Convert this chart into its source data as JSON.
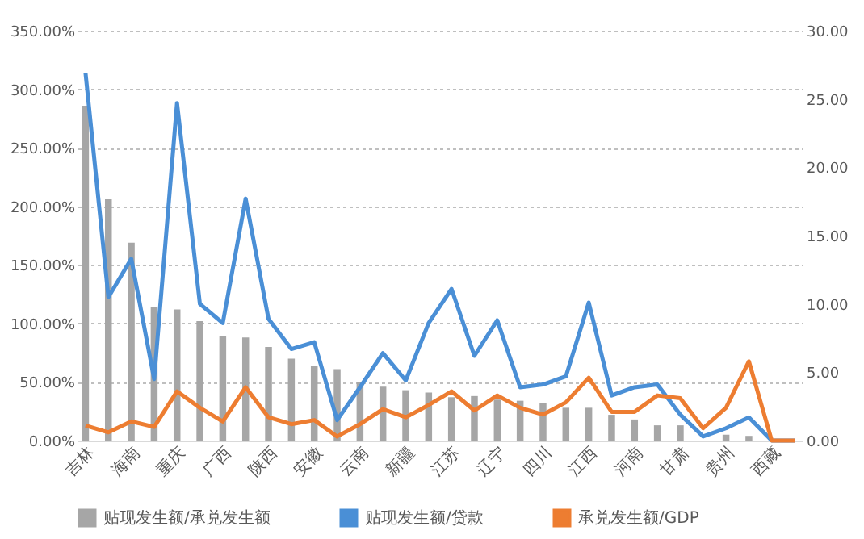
{
  "chart_data": {
    "type": "bar",
    "categories": [
      "吉林",
      null,
      "海南",
      null,
      "重庆",
      null,
      "广西",
      null,
      "陕西",
      null,
      "安徽",
      null,
      "云南",
      null,
      "新疆",
      null,
      "江苏",
      null,
      "辽宁",
      null,
      "四川",
      null,
      "江西",
      null,
      "河南",
      null,
      "甘肃",
      null,
      "贵州",
      null,
      "西藏",
      null
    ],
    "series": [
      {
        "name": "贴现发生额/承兑发生额",
        "color": "#a6a6a6",
        "values": [
          286,
          206,
          169,
          114,
          112,
          102,
          89,
          88,
          80,
          70,
          64,
          61,
          50,
          46,
          43,
          41,
          37,
          38,
          35,
          34,
          32,
          28,
          28,
          22,
          18,
          13,
          13,
          null,
          5,
          4,
          0,
          0
        ]
      },
      {
        "name": "贴现发生额/贷款",
        "type": "line",
        "axis": "y2",
        "color": "#4a8fd6",
        "values": [
          26.9,
          10.5,
          13.3,
          4.5,
          24.7,
          10.0,
          8.6,
          17.7,
          8.9,
          6.7,
          7.2,
          1.5,
          3.9,
          6.4,
          4.4,
          8.6,
          11.1,
          6.2,
          8.8,
          3.9,
          4.1,
          4.7,
          10.1,
          3.3,
          3.9,
          4.1,
          1.9,
          0.3,
          0.9,
          1.7,
          0,
          0
        ]
      },
      {
        "name": "承兑发生额/GDP",
        "type": "line",
        "axis": "y2",
        "color": "#ed7d31",
        "values": [
          1.1,
          0.6,
          1.4,
          1.0,
          3.6,
          2.4,
          1.4,
          3.9,
          1.7,
          1.2,
          1.5,
          0.3,
          1.2,
          2.3,
          1.7,
          2.6,
          3.6,
          2.2,
          3.3,
          2.4,
          1.9,
          2.8,
          4.6,
          2.1,
          2.1,
          3.3,
          3.1,
          0.9,
          2.4,
          5.8,
          0,
          0
        ]
      }
    ],
    "ylim": [
      0,
      350
    ],
    "yticks": [
      {
        "value": 0,
        "label": "0.00%"
      },
      {
        "value": 50,
        "label": "50.00%"
      },
      {
        "value": 100,
        "label": "100.00%"
      },
      {
        "value": 150,
        "label": "150.00%"
      },
      {
        "value": 200,
        "label": "200.00%"
      },
      {
        "value": 250,
        "label": "250.00%"
      },
      {
        "value": 300,
        "label": "300.00%"
      },
      {
        "value": 350,
        "label": "350.00%"
      }
    ],
    "y2lim": [
      0,
      30
    ],
    "y2ticks": [
      {
        "value": 0,
        "label": "0.00"
      },
      {
        "value": 5,
        "label": "5.00"
      },
      {
        "value": 10,
        "label": "10.00"
      },
      {
        "value": 15,
        "label": "15.00"
      },
      {
        "value": 20,
        "label": "20.00"
      },
      {
        "value": 25,
        "label": "25.00"
      },
      {
        "value": 30,
        "label": "30.00"
      }
    ],
    "grid": "y",
    "legend": "bottom",
    "marker": "none",
    "line_style": "solid"
  }
}
